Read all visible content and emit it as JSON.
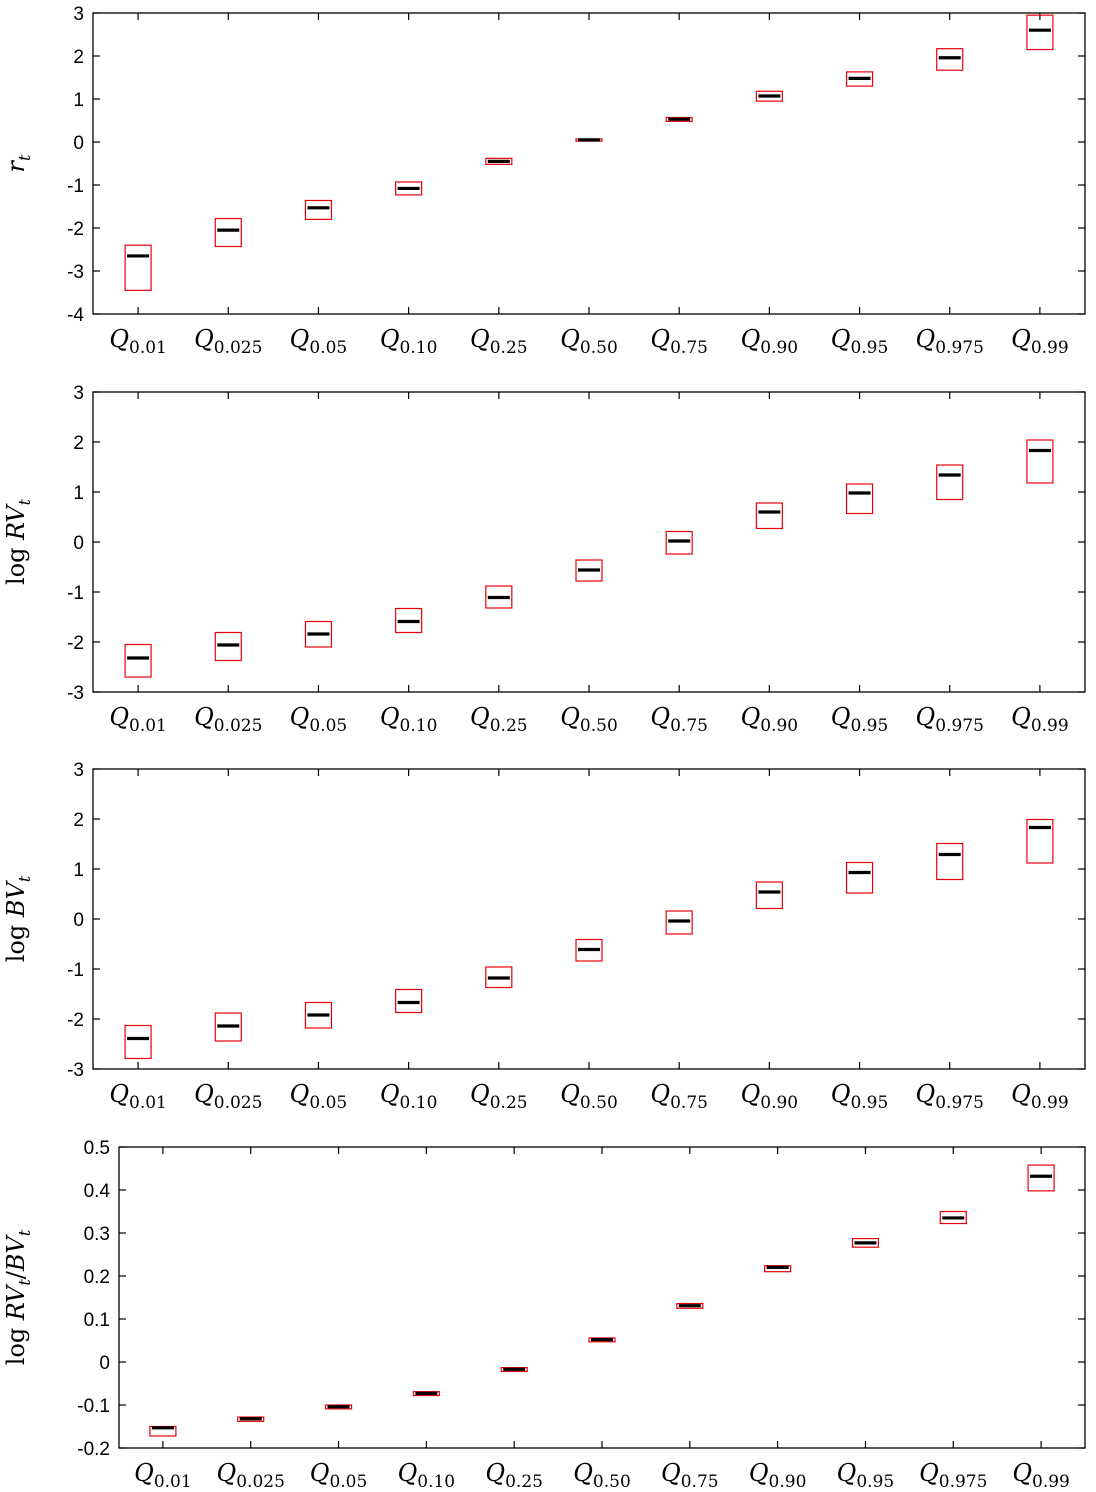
{
  "chart_data": [
    {
      "type": "box",
      "ylabel": "r_t",
      "ylabel_parts": [
        {
          "t": "r",
          "it": true
        },
        {
          "t": "t",
          "sub": true
        }
      ],
      "ylim": [
        -4,
        3
      ],
      "yticks": [
        3,
        2,
        1,
        0,
        -1,
        -2,
        -3,
        -4
      ],
      "ytick_labels": [
        "3",
        "2",
        "1",
        "0",
        "-1",
        "-2",
        "-3",
        "-4"
      ],
      "categories": [
        "Q_0.01",
        "Q_0.025",
        "Q_0.05",
        "Q_0.10",
        "Q_0.25",
        "Q_0.50",
        "Q_0.75",
        "Q_0.90",
        "Q_0.95",
        "Q_0.975",
        "Q_0.99"
      ],
      "boxes": [
        {
          "low": -3.45,
          "median": -2.65,
          "high": -2.4
        },
        {
          "low": -2.43,
          "median": -2.05,
          "high": -1.78
        },
        {
          "low": -1.8,
          "median": -1.53,
          "high": -1.36
        },
        {
          "low": -1.23,
          "median": -1.08,
          "high": -0.93
        },
        {
          "low": -0.52,
          "median": -0.45,
          "high": -0.38
        },
        {
          "low": 0.02,
          "median": 0.05,
          "high": 0.07
        },
        {
          "low": 0.48,
          "median": 0.53,
          "high": 0.57
        },
        {
          "low": 0.95,
          "median": 1.07,
          "high": 1.18
        },
        {
          "low": 1.3,
          "median": 1.48,
          "high": 1.63
        },
        {
          "low": 1.67,
          "median": 1.96,
          "high": 2.17
        },
        {
          "low": 2.15,
          "median": 2.6,
          "high": 2.95
        }
      ]
    },
    {
      "type": "box",
      "ylabel": "log RV_t",
      "ylabel_parts": [
        {
          "t": "log "
        },
        {
          "t": "RV",
          "it": true
        },
        {
          "t": "t",
          "sub": true
        }
      ],
      "ylim": [
        -3,
        3
      ],
      "yticks": [
        3,
        2,
        1,
        0,
        -1,
        -2,
        -3
      ],
      "ytick_labels": [
        "3",
        "2",
        "1",
        "0",
        "-1",
        "-2",
        "-3"
      ],
      "categories": [
        "Q_0.01",
        "Q_0.025",
        "Q_0.05",
        "Q_0.10",
        "Q_0.25",
        "Q_0.50",
        "Q_0.75",
        "Q_0.90",
        "Q_0.95",
        "Q_0.975",
        "Q_0.99"
      ],
      "boxes": [
        {
          "low": -2.7,
          "median": -2.32,
          "high": -2.05
        },
        {
          "low": -2.37,
          "median": -2.06,
          "high": -1.81
        },
        {
          "low": -2.1,
          "median": -1.84,
          "high": -1.59
        },
        {
          "low": -1.81,
          "median": -1.59,
          "high": -1.33
        },
        {
          "low": -1.32,
          "median": -1.11,
          "high": -0.88
        },
        {
          "low": -0.78,
          "median": -0.56,
          "high": -0.36
        },
        {
          "low": -0.24,
          "median": 0.02,
          "high": 0.21
        },
        {
          "low": 0.27,
          "median": 0.6,
          "high": 0.78
        },
        {
          "low": 0.57,
          "median": 0.98,
          "high": 1.16
        },
        {
          "low": 0.85,
          "median": 1.34,
          "high": 1.54
        },
        {
          "low": 1.18,
          "median": 1.83,
          "high": 2.04
        }
      ]
    },
    {
      "type": "box",
      "ylabel": "log BV_t",
      "ylabel_parts": [
        {
          "t": "log "
        },
        {
          "t": "BV",
          "it": true
        },
        {
          "t": "t",
          "sub": true
        }
      ],
      "ylim": [
        -3,
        3
      ],
      "yticks": [
        3,
        2,
        1,
        0,
        -1,
        -2,
        -3
      ],
      "ytick_labels": [
        "3",
        "2",
        "1",
        "0",
        "-1",
        "-2",
        "-3"
      ],
      "categories": [
        "Q_0.01",
        "Q_0.025",
        "Q_0.05",
        "Q_0.10",
        "Q_0.25",
        "Q_0.50",
        "Q_0.75",
        "Q_0.90",
        "Q_0.95",
        "Q_0.975",
        "Q_0.99"
      ],
      "boxes": [
        {
          "low": -2.79,
          "median": -2.39,
          "high": -2.13
        },
        {
          "low": -2.44,
          "median": -2.14,
          "high": -1.88
        },
        {
          "low": -2.18,
          "median": -1.92,
          "high": -1.67
        },
        {
          "low": -1.87,
          "median": -1.67,
          "high": -1.41
        },
        {
          "low": -1.37,
          "median": -1.18,
          "high": -0.96
        },
        {
          "low": -0.84,
          "median": -0.61,
          "high": -0.41
        },
        {
          "low": -0.3,
          "median": -0.04,
          "high": 0.16
        },
        {
          "low": 0.21,
          "median": 0.54,
          "high": 0.74
        },
        {
          "low": 0.52,
          "median": 0.93,
          "high": 1.13
        },
        {
          "low": 0.79,
          "median": 1.29,
          "high": 1.51
        },
        {
          "low": 1.12,
          "median": 1.83,
          "high": 1.99
        }
      ]
    },
    {
      "type": "box",
      "ylabel": "log RV_t/BV_t",
      "ylabel_parts": [
        {
          "t": "log "
        },
        {
          "t": "RV",
          "it": true
        },
        {
          "t": "t",
          "sub": true
        },
        {
          "t": "/"
        },
        {
          "t": "BV",
          "it": true
        },
        {
          "t": "t",
          "sub": true
        }
      ],
      "ylim": [
        -0.2,
        0.5
      ],
      "yticks": [
        0.5,
        0.4,
        0.3,
        0.2,
        0.1,
        0,
        -0.1,
        -0.2
      ],
      "ytick_labels": [
        "0.5",
        "0.4",
        "0.3",
        "0.2",
        "0.1",
        "0",
        "-0.1",
        "-0.2"
      ],
      "categories": [
        "Q_0.01",
        "Q_0.025",
        "Q_0.05",
        "Q_0.10",
        "Q_0.25",
        "Q_0.50",
        "Q_0.75",
        "Q_0.90",
        "Q_0.95",
        "Q_0.975",
        "Q_0.99"
      ],
      "boxes": [
        {
          "low": -0.172,
          "median": -0.153,
          "high": -0.15
        },
        {
          "low": -0.138,
          "median": -0.132,
          "high": -0.128
        },
        {
          "low": -0.109,
          "median": -0.104,
          "high": -0.1
        },
        {
          "low": -0.078,
          "median": -0.073,
          "high": -0.069
        },
        {
          "low": -0.022,
          "median": -0.017,
          "high": -0.013
        },
        {
          "low": 0.047,
          "median": 0.052,
          "high": 0.056
        },
        {
          "low": 0.125,
          "median": 0.131,
          "high": 0.136
        },
        {
          "low": 0.21,
          "median": 0.22,
          "high": 0.224
        },
        {
          "low": 0.267,
          "median": 0.277,
          "high": 0.287
        },
        {
          "low": 0.322,
          "median": 0.335,
          "high": 0.35
        },
        {
          "low": 0.398,
          "median": 0.432,
          "high": 0.458
        }
      ]
    }
  ],
  "colors": {
    "box": "#e8000b",
    "median": "#000000",
    "axis": "#000000"
  }
}
